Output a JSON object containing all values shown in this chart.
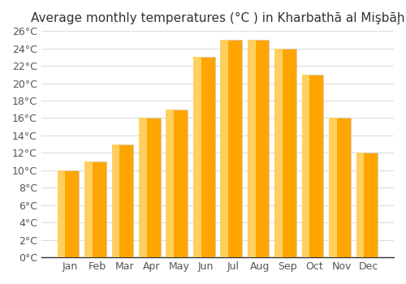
{
  "title": "Average monthly temperatures (°C ) in Kharbathā al Mişbāḩ",
  "months": [
    "Jan",
    "Feb",
    "Mar",
    "Apr",
    "May",
    "Jun",
    "Jul",
    "Aug",
    "Sep",
    "Oct",
    "Nov",
    "Dec"
  ],
  "values": [
    10,
    11,
    13,
    16,
    17,
    23,
    25,
    25,
    24,
    21,
    16,
    12
  ],
  "bar_color_main": "#FFA500",
  "bar_color_light": "#FFD060",
  "ylim": [
    0,
    26
  ],
  "yticks": [
    0,
    2,
    4,
    6,
    8,
    10,
    12,
    14,
    16,
    18,
    20,
    22,
    24,
    26
  ],
  "ytick_labels": [
    "0°C",
    "2°C",
    "4°C",
    "6°C",
    "8°C",
    "10°C",
    "12°C",
    "14°C",
    "16°C",
    "18°C",
    "20°C",
    "22°C",
    "24°C",
    "26°C"
  ],
  "background_color": "#ffffff",
  "grid_color": "#dddddd",
  "title_fontsize": 11,
  "tick_fontsize": 9
}
